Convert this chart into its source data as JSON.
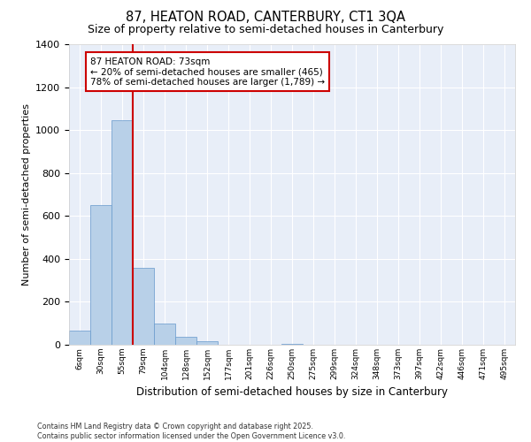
{
  "title_line1": "87, HEATON ROAD, CANTERBURY, CT1 3QA",
  "title_line2": "Size of property relative to semi-detached houses in Canterbury",
  "xlabel": "Distribution of semi-detached houses by size in Canterbury",
  "ylabel": "Number of semi-detached properties",
  "categories": [
    "6sqm",
    "30sqm",
    "55sqm",
    "79sqm",
    "104sqm",
    "128sqm",
    "152sqm",
    "177sqm",
    "201sqm",
    "226sqm",
    "250sqm",
    "275sqm",
    "299sqm",
    "324sqm",
    "348sqm",
    "373sqm",
    "397sqm",
    "422sqm",
    "446sqm",
    "471sqm",
    "495sqm"
  ],
  "values": [
    65,
    650,
    1045,
    360,
    100,
    38,
    15,
    0,
    0,
    0,
    5,
    0,
    0,
    0,
    0,
    0,
    0,
    0,
    0,
    0,
    0
  ],
  "bar_color": "#b8d0e8",
  "bar_edge_color": "#6699cc",
  "bg_color": "#e8eef8",
  "grid_color": "#ffffff",
  "annotation_text": "87 HEATON ROAD: 73sqm\n← 20% of semi-detached houses are smaller (465)\n78% of semi-detached houses are larger (1,789) →",
  "annotation_box_color": "#ffffff",
  "annotation_box_edge": "#cc0000",
  "red_line_color": "#cc0000",
  "ylim": [
    0,
    1400
  ],
  "footer": "Contains HM Land Registry data © Crown copyright and database right 2025.\nContains public sector information licensed under the Open Government Licence v3.0."
}
